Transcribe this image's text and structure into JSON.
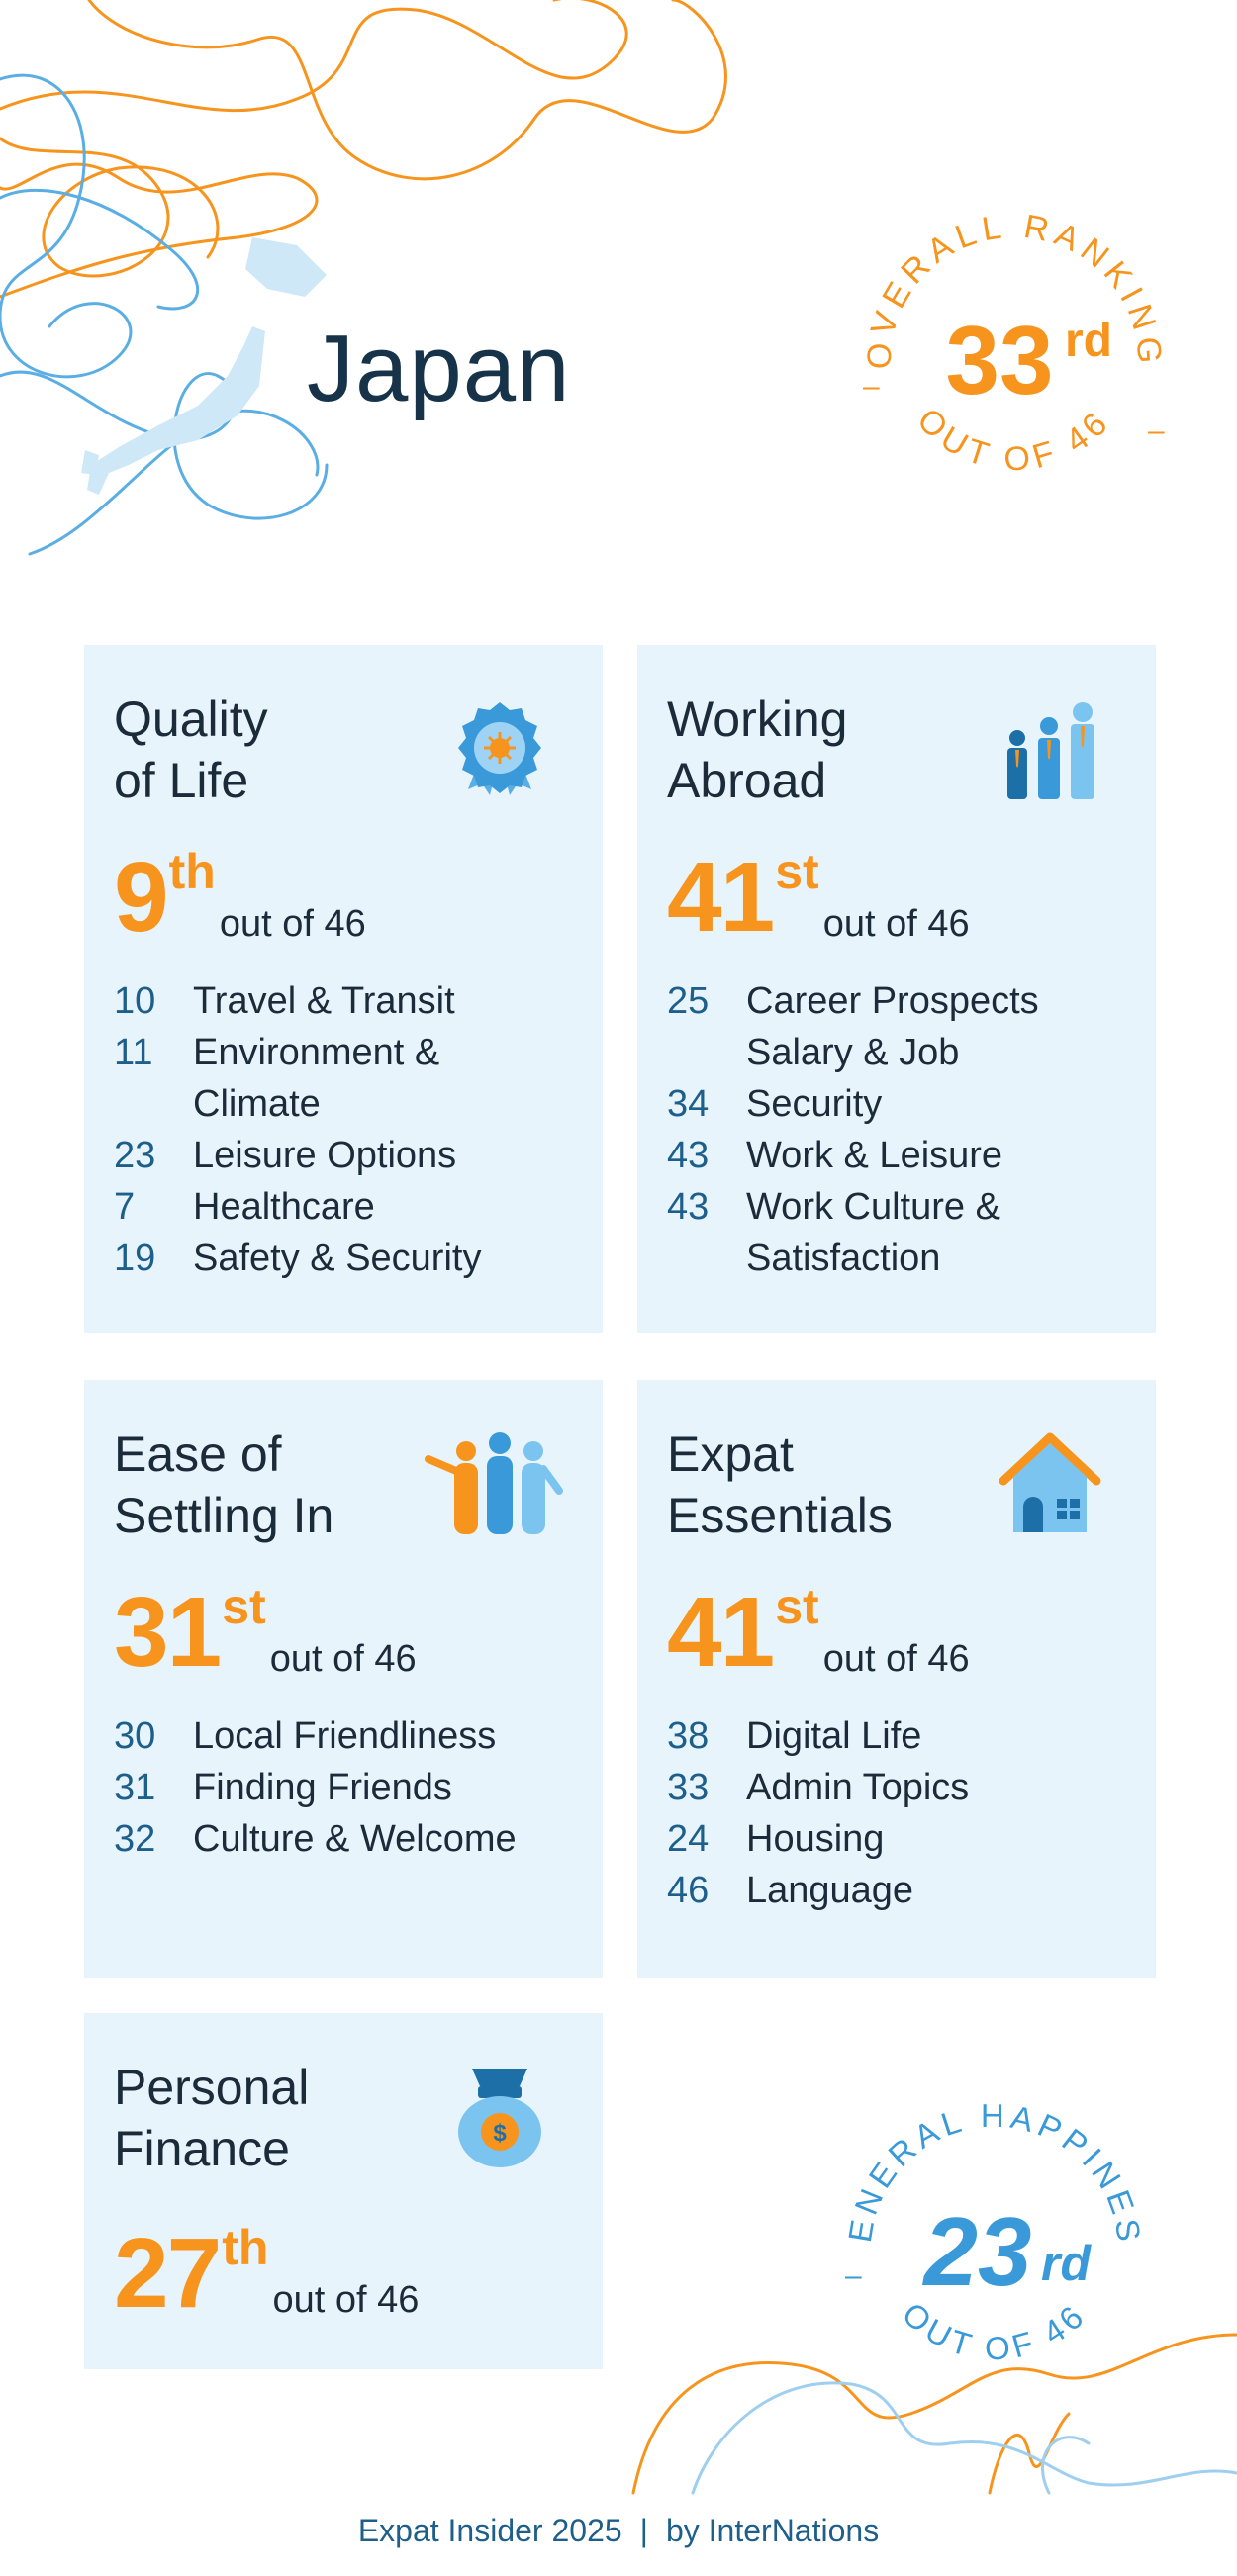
{
  "country": "Japan",
  "overall": {
    "label": "OVERALL RANKING",
    "rank": "33",
    "suffix": "rd",
    "out_of": "OUT OF 46",
    "color": "#f7941d"
  },
  "happiness": {
    "label": "GENERAL HAPPINESS",
    "rank": "23",
    "suffix": "rd",
    "out_of": "OUT OF 46",
    "color": "#3a9ad9"
  },
  "cards": [
    {
      "title_line1": "Quality",
      "title_line2": "of Life",
      "icon": "award-ribbon-icon",
      "rank": "9",
      "suffix": "th",
      "out_of": "out of 46",
      "items": [
        {
          "rank": "10",
          "label": "Travel & Transit"
        },
        {
          "rank": "11",
          "label": "Environment & Climate"
        },
        {
          "rank": "23",
          "label": "Leisure Options"
        },
        {
          "rank": "7",
          "label": "Healthcare"
        },
        {
          "rank": "19",
          "label": "Safety & Security"
        }
      ]
    },
    {
      "title_line1": "Working",
      "title_line2": "Abroad",
      "icon": "people-growth-icon",
      "rank": "41",
      "suffix": "st",
      "out_of": "out of 46",
      "items": [
        {
          "rank": "25",
          "label": "Career Prospects"
        },
        {
          "rank": "",
          "label": "Salary & Job"
        },
        {
          "rank": "34",
          "label": "Security"
        },
        {
          "rank": "43",
          "label": "Work & Leisure"
        },
        {
          "rank": "43",
          "label": "Work Culture & Satisfaction"
        }
      ]
    },
    {
      "title_line1": "Ease of",
      "title_line2": "Settling In",
      "icon": "friends-waving-icon",
      "rank": "31",
      "suffix": "st",
      "out_of": "out of 46",
      "items": [
        {
          "rank": "30",
          "label": "Local Friendliness"
        },
        {
          "rank": "31",
          "label": "Finding Friends"
        },
        {
          "rank": "32",
          "label": "Culture & Welcome"
        }
      ]
    },
    {
      "title_line1": "Expat",
      "title_line2": "Essentials",
      "icon": "house-icon",
      "rank": "41",
      "suffix": "st",
      "out_of": "out of 46",
      "items": [
        {
          "rank": "38",
          "label": "Digital Life"
        },
        {
          "rank": "33",
          "label": "Admin Topics"
        },
        {
          "rank": "24",
          "label": "Housing"
        },
        {
          "rank": "46",
          "label": "Language"
        }
      ]
    },
    {
      "title_line1": "Personal",
      "title_line2": "Finance",
      "icon": "money-bag-icon",
      "rank": "27",
      "suffix": "th",
      "out_of": "out of 46",
      "items": []
    }
  ],
  "footer": {
    "left": "Expat Insider 2025",
    "separator": "|",
    "right": "by InterNations"
  }
}
